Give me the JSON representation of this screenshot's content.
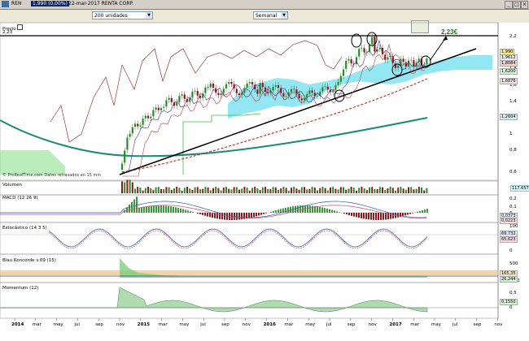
{
  "window": {
    "ticker": "REN",
    "price_box": "1,990 (0,00%)",
    "date_company": "22-mar-2017 RENTA CORP."
  },
  "toolbar": {
    "units_select": "200 unidades",
    "period_select": "Semanal"
  },
  "panels": {
    "price": {
      "label": "Precio",
      "top_value": "2,23"
    },
    "watermark": "© ProRealTime.com Datos retrasados en 15 min",
    "volume": {
      "label": "Volumen",
      "value_box": "117.657"
    },
    "macd": {
      "label": "MACD (12 26 9)"
    },
    "stoch": {
      "label": "Estocástico (14 3 5)"
    },
    "blau": {
      "label": "Blau Koncorde v.09 (15)"
    },
    "momentum": {
      "label": "Momentum (12)"
    }
  },
  "chart_data": {
    "type": "line",
    "annotation": "2,23€",
    "price_axis": {
      "ticks": [
        "2,2",
        "2",
        "1,8",
        "1,6",
        "1,4",
        "1,2",
        "1",
        "0,8",
        "0,6"
      ],
      "value_boxes": [
        "1,990",
        "1,9612",
        "1,8084",
        "1,6200",
        "1,6876",
        "1,2604"
      ]
    },
    "macd_axis": {
      "ticks": [
        "0,2",
        "0,1",
        "0",
        "-0,1"
      ],
      "value_boxes": [
        "0,0373",
        "0,0223"
      ]
    },
    "stoch_axis": {
      "ticks": [
        "100",
        "50",
        "0"
      ],
      "value_boxes": [
        "69,732",
        "65,623"
      ]
    },
    "blau_axis": {
      "ticks": [
        "500",
        "0",
        "-500"
      ],
      "value_boxes": [
        "165,35",
        "26,244"
      ]
    },
    "momentum_axis": {
      "ticks": [
        "0,5",
        "0"
      ],
      "value_boxes": [
        "0,1550"
      ]
    },
    "x_ticks": [
      {
        "label": "2014",
        "bold": true
      },
      {
        "label": "mar",
        "bold": false
      },
      {
        "label": "may",
        "bold": false
      },
      {
        "label": "jul",
        "bold": false
      },
      {
        "label": "sep",
        "bold": false
      },
      {
        "label": "nov",
        "bold": false
      },
      {
        "label": "2015",
        "bold": true
      },
      {
        "label": "mar",
        "bold": false
      },
      {
        "label": "may",
        "bold": false
      },
      {
        "label": "jul",
        "bold": false
      },
      {
        "label": "sep",
        "bold": false
      },
      {
        "label": "nov",
        "bold": false
      },
      {
        "label": "2016",
        "bold": true
      },
      {
        "label": "mar",
        "bold": false
      },
      {
        "label": "may",
        "bold": false
      },
      {
        "label": "jul",
        "bold": false
      },
      {
        "label": "sep",
        "bold": false
      },
      {
        "label": "nov",
        "bold": false
      },
      {
        "label": "2017",
        "bold": true
      },
      {
        "label": "mar",
        "bold": false
      },
      {
        "label": "may",
        "bold": false
      },
      {
        "label": "jul",
        "bold": false
      },
      {
        "label": "sep",
        "bold": false
      },
      {
        "label": "nov",
        "bold": false
      }
    ],
    "colors": {
      "candles_up": "#2a8a2a",
      "candles_down": "#8b1a1a",
      "support": "#000000",
      "trend_dashed": "#c0392b",
      "ma_long": "#1a8a7a",
      "cloud": "#7fe3f0",
      "cloud_green": "#8ee08e",
      "annotation": "#1f7a1f"
    }
  }
}
